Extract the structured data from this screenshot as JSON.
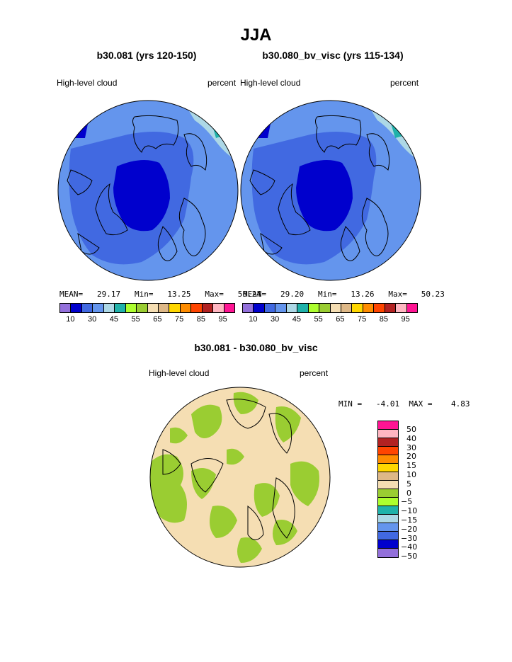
{
  "page": {
    "title": "JJA",
    "diff_title": "b30.081 - b30.080_bv_visc"
  },
  "panels": [
    {
      "subtitle": "b30.081 (yrs 120-150)",
      "variable": "High-level cloud",
      "units": "percent",
      "mean_label": "MEAN=",
      "mean": "29.17",
      "min_label": "Min=",
      "min": "13.25",
      "max_label": "Max=",
      "max": "50.24"
    },
    {
      "subtitle": "b30.080_bv_visc (yrs 115-134)",
      "variable": "High-level cloud",
      "units": "percent",
      "mean_label": "MEAN=",
      "mean": "29.20",
      "min_label": "Min=",
      "min": "13.26",
      "max_label": "Max=",
      "max": "50.23"
    }
  ],
  "diff_panel": {
    "variable": "High-level cloud",
    "units": "percent",
    "min_label": "MIN =",
    "min": "-4.01",
    "max_label": "MAX =",
    "max": "4.83"
  },
  "colors": {
    "abs_scale": [
      "#9370db",
      "#0000cd",
      "#4169e1",
      "#6495ed",
      "#add8e6",
      "#20b2aa",
      "#adff2f",
      "#9acd32",
      "#f5deb3",
      "#deb887",
      "#ffd700",
      "#ff8c00",
      "#ff4500",
      "#b22222",
      "#ffb6c1",
      "#ff1493"
    ],
    "diff_scale": [
      "#9370db",
      "#0000cd",
      "#4169e1",
      "#6495ed",
      "#add8e6",
      "#20b2aa",
      "#adff2f",
      "#9acd32",
      "#f5deb3",
      "#deb887",
      "#ffd700",
      "#ff8c00",
      "#ff4500",
      "#b22222",
      "#ffb6c1",
      "#ff1493"
    ]
  },
  "chart_data": [
    {
      "type": "heatmap",
      "title": "b30.081 (yrs 120-150)",
      "field": "High-level cloud",
      "units": "percent",
      "projection": "north polar stereographic",
      "mean": 29.17,
      "min": 13.25,
      "max": 50.24,
      "levels": [
        10,
        15,
        20,
        25,
        30,
        35,
        40,
        45,
        50,
        55,
        60,
        65,
        70,
        75,
        80,
        85,
        90,
        95
      ],
      "tick_labels": [
        "10",
        "30",
        "45",
        "55",
        "65",
        "75",
        "85",
        "95"
      ]
    },
    {
      "type": "heatmap",
      "title": "b30.080_bv_visc (yrs 115-134)",
      "field": "High-level cloud",
      "units": "percent",
      "projection": "north polar stereographic",
      "mean": 29.2,
      "min": 13.26,
      "max": 50.23,
      "levels": [
        10,
        15,
        20,
        25,
        30,
        35,
        40,
        45,
        50,
        55,
        60,
        65,
        70,
        75,
        80,
        85,
        90,
        95
      ],
      "tick_labels": [
        "10",
        "30",
        "45",
        "55",
        "65",
        "75",
        "85",
        "95"
      ]
    },
    {
      "type": "heatmap",
      "title": "b30.081 - b30.080_bv_visc",
      "field": "High-level cloud",
      "units": "percent",
      "projection": "north polar stereographic",
      "min": -4.01,
      "max": 4.83,
      "levels": [
        -50,
        -40,
        -30,
        -20,
        -15,
        -10,
        -5,
        0,
        5,
        10,
        15,
        20,
        30,
        40,
        50
      ],
      "tick_labels": [
        "50",
        "40",
        "30",
        "20",
        "15",
        "10",
        "5",
        "0",
        "−5",
        "−10",
        "−15",
        "−20",
        "−30",
        "−40",
        "−50"
      ]
    }
  ]
}
